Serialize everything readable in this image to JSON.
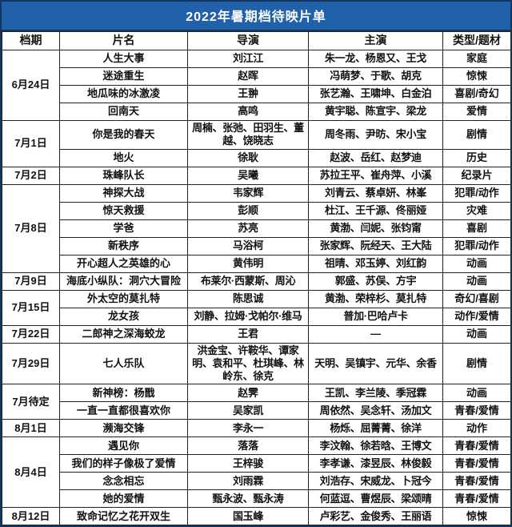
{
  "chart_data": {
    "type": "table",
    "title": "2022年暑期档待映片单",
    "columns": [
      "档期",
      "片名",
      "导演",
      "主演",
      "类型/题材"
    ],
    "groups": [
      {
        "date": "6月24日",
        "films": [
          {
            "name": "人生大事",
            "director": "刘江江",
            "cast": "朱一龙、杨恩又、王戈",
            "genre": "家庭"
          },
          {
            "name": "迷途重生",
            "director": "赵晖",
            "cast": "冯萌梦、于歌、胡克",
            "genre": "惊悚"
          },
          {
            "name": "地瓜味的冰激凌",
            "director": "王翀",
            "cast": "张艺瀚、王啸坤、白金泊",
            "genre": "喜剧/奇幻"
          },
          {
            "name": "回南天",
            "director": "高鸣",
            "cast": "黄宇聪、陈宣宇、梁龙",
            "genre": "爱情"
          }
        ]
      },
      {
        "date": "7月1日",
        "films": [
          {
            "name": "你是我的春天",
            "director": "周楠、张弛、田羽生、董越、饶晓志",
            "cast": "周冬雨、尹昉、宋小宝",
            "genre": "剧情"
          },
          {
            "name": "地火",
            "director": "徐耿",
            "cast": "赵波、岳红、赵梦迪",
            "genre": "历史"
          }
        ]
      },
      {
        "date": "7月2日",
        "films": [
          {
            "name": "珠峰队长",
            "director": "吴曦",
            "cast": "苏拉王平、崔舟萍、小溪",
            "genre": "纪录片"
          }
        ]
      },
      {
        "date": "7月8日",
        "films": [
          {
            "name": "神探大战",
            "director": "韦家辉",
            "cast": "刘青云、蔡卓妍、林峯",
            "genre": "犯罪/动作"
          },
          {
            "name": "惊天救援",
            "director": "彭顺",
            "cast": "杜江、王千源、佟丽娅",
            "genre": "灾难"
          },
          {
            "name": "学爸",
            "director": "苏亮",
            "cast": "黄渤、闫妮、张钧甯",
            "genre": "喜剧"
          },
          {
            "name": "新秩序",
            "director": "马浴柯",
            "cast": "张家辉、阮经天、王大陆",
            "genre": "犯罪/动作"
          },
          {
            "name": "开心超人之英雄的心",
            "director": "黄伟明",
            "cast": "祖晴、邓玉婷、刘红韵",
            "genre": "动画"
          }
        ]
      },
      {
        "date": "7月9日",
        "films": [
          {
            "name": "海底小纵队：洞穴大冒险",
            "director": "布莱尔·西蒙斯、周沁",
            "cast": "郭盛、苏俣、方宇",
            "genre": "动画"
          }
        ]
      },
      {
        "date": "7月15日",
        "films": [
          {
            "name": "外太空的莫扎特",
            "director": "陈思诚",
            "cast": "黄渤、荣梓杉、莫扎特",
            "genre": "奇幻/喜剧"
          },
          {
            "name": "龙女孩",
            "director": "刘静、拉姆·戈帕尔·维马",
            "cast": "普加·巴哈卢卡",
            "genre": "动作/爱情"
          }
        ]
      },
      {
        "date": "7月22日",
        "films": [
          {
            "name": "二郎神之深海蛟龙",
            "director": "王君",
            "cast": "—",
            "genre": "动画"
          }
        ]
      },
      {
        "date": "7月29日",
        "films": [
          {
            "name": "七人乐队",
            "director": "洪金宝、许鞍华、谭家明、袁和平、杜琪峰、林岭东、徐克",
            "cast": "天明、吴镇宇、元华、余香",
            "genre": "剧情"
          }
        ]
      },
      {
        "date": "7月待定",
        "films": [
          {
            "name": "新神榜：杨戬",
            "director": "赵霁",
            "cast": "王凯、李兰陵、季冠霖",
            "genre": "动画"
          },
          {
            "name": "一直一直都很喜欢你",
            "director": "吴家凯",
            "cast": "周依然、吴念轩、汤加文",
            "genre": "青春/爱情"
          }
        ]
      },
      {
        "date": "8月1日",
        "films": [
          {
            "name": "濒海交锋",
            "director": "李永一",
            "cast": "杨烁、屈菁菁、徐洋",
            "genre": "动作"
          }
        ]
      },
      {
        "date": "8月4日",
        "films": [
          {
            "name": "遇见你",
            "director": "落落",
            "cast": "李汶翰、徐若晗、王博文",
            "genre": "青春/爱情"
          },
          {
            "name": "我们的样子像极了爱情",
            "director": "王梓骏",
            "cast": "李孝谦、漆昱辰、林俊毅",
            "genre": "青春/爱情"
          },
          {
            "name": "念念相忘",
            "director": "刘雨霖",
            "cast": "刘浩存、宋威龙、卜冠今",
            "genre": "青春/爱情"
          },
          {
            "name": "她的爱情",
            "director": "甄永波、甄永涛",
            "cast": "何蓝逗、曹煜辰、梁颂晴",
            "genre": "青春/爱情"
          }
        ]
      },
      {
        "date": "8月12日",
        "films": [
          {
            "name": "致命记忆之花开双生",
            "director": "国玉峰",
            "cast": "卢彩艺、金俊秀、王丽语",
            "genre": "惊悚"
          }
        ]
      }
    ]
  },
  "colors": {
    "title_bg": "#2161a9",
    "outer_border": "#15375f",
    "grid_line": "#222222",
    "title_text": "#ffffff",
    "body_text": "#111111"
  }
}
